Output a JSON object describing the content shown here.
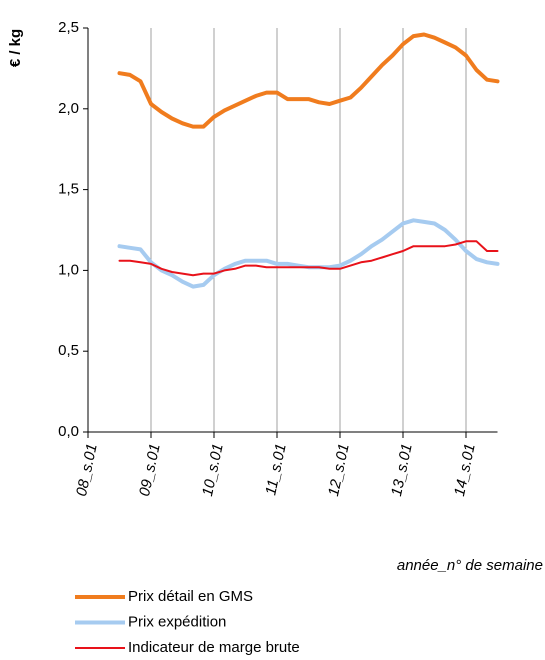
{
  "chart_data": {
    "type": "line",
    "ylabel": "€ / kg",
    "xlabel": "année_n° de semaine",
    "categories": [
      "08_s.01",
      null,
      null,
      null,
      null,
      null,
      "09_s.01",
      null,
      null,
      null,
      null,
      null,
      "10_s.01",
      null,
      null,
      null,
      null,
      null,
      "11_s.01",
      null,
      null,
      null,
      null,
      null,
      "12_s.01",
      null,
      null,
      null,
      null,
      null,
      "13_s.01",
      null,
      null,
      null,
      null,
      null,
      "14_s.01",
      null,
      null,
      null
    ],
    "series": [
      {
        "name": "Prix détail en GMS",
        "color": "#f07c1e",
        "width": 4,
        "values": [
          null,
          null,
          null,
          2.22,
          2.21,
          2.17,
          2.03,
          1.98,
          1.94,
          1.91,
          1.89,
          1.89,
          1.95,
          1.99,
          2.02,
          2.05,
          2.08,
          2.1,
          2.1,
          2.06,
          2.06,
          2.06,
          2.04,
          2.03,
          2.05,
          2.07,
          2.13,
          2.2,
          2.27,
          2.33,
          2.4,
          2.45,
          2.46,
          2.44,
          2.41,
          2.38,
          2.33,
          2.24,
          2.18,
          2.17
        ]
      },
      {
        "name": "Prix expédition",
        "color": "#a6cbf0",
        "width": 4,
        "values": [
          null,
          null,
          null,
          1.15,
          1.14,
          1.13,
          1.05,
          1.0,
          0.97,
          0.93,
          0.9,
          0.91,
          0.97,
          1.01,
          1.04,
          1.06,
          1.06,
          1.06,
          1.04,
          1.04,
          1.03,
          1.02,
          1.02,
          1.02,
          1.03,
          1.06,
          1.1,
          1.15,
          1.19,
          1.24,
          1.29,
          1.31,
          1.3,
          1.29,
          1.25,
          1.19,
          1.12,
          1.07,
          1.05,
          1.04
        ]
      },
      {
        "name": "Indicateur de marge brute",
        "color": "#e8121a",
        "width": 2,
        "values": [
          null,
          null,
          null,
          1.06,
          1.06,
          1.05,
          1.04,
          1.01,
          0.99,
          0.98,
          0.97,
          0.98,
          0.98,
          1.0,
          1.01,
          1.03,
          1.03,
          1.02,
          1.02,
          1.02,
          1.02,
          1.02,
          1.02,
          1.01,
          1.01,
          1.03,
          1.05,
          1.06,
          1.08,
          1.1,
          1.12,
          1.15,
          1.15,
          1.15,
          1.15,
          1.16,
          1.18,
          1.18,
          1.12,
          1.12
        ]
      }
    ],
    "ylim": [
      0,
      2.5
    ],
    "yticks": [
      {
        "value": 0,
        "label": "0,0"
      },
      {
        "value": 0.5,
        "label": "0,5"
      },
      {
        "value": 1,
        "label": "1,0"
      },
      {
        "value": 1.5,
        "label": "1,5"
      },
      {
        "value": 2,
        "label": "2,0"
      },
      {
        "value": 2.5,
        "label": "2,5"
      }
    ],
    "grid": "x",
    "legend": "bottom"
  }
}
